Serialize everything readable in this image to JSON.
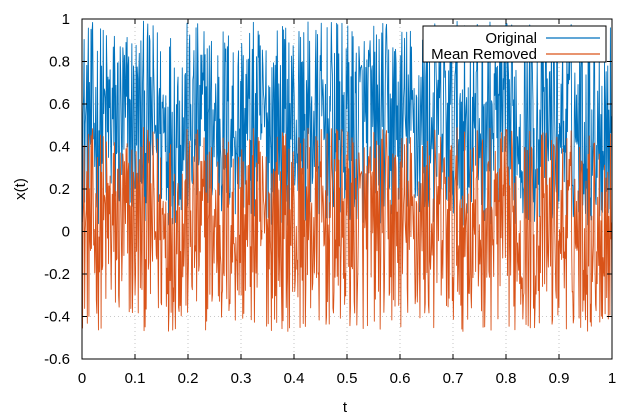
{
  "chart_data": {
    "type": "line",
    "title": "",
    "xlabel": "t",
    "ylabel": "x(t)",
    "xlim": [
      0,
      1
    ],
    "ylim": [
      -0.6,
      1
    ],
    "xticks": [
      0,
      0.1,
      0.2,
      0.3,
      0.4,
      0.5,
      0.6,
      0.7,
      0.8,
      0.9,
      1
    ],
    "xtick_labels": [
      "0",
      "0.1",
      "0.2",
      "0.3",
      "0.4",
      "0.5",
      "0.6",
      "0.7",
      "0.8",
      "0.9",
      "1"
    ],
    "yticks": [
      -0.6,
      -0.4,
      -0.2,
      0,
      0.2,
      0.4,
      0.6,
      0.8,
      1
    ],
    "ytick_labels": [
      "-0.6",
      "-0.4",
      "-0.2",
      "0",
      "0.2",
      "0.4",
      "0.6",
      "0.8",
      "1"
    ],
    "grid": true,
    "legend_position": "top-right",
    "series": [
      {
        "name": "Original",
        "color": "#0072BD",
        "x_range": [
          0,
          1
        ],
        "n_points": 1000,
        "value_range": [
          0.03,
          0.99
        ],
        "mean": 0.5
      },
      {
        "name": "Mean Removed",
        "color": "#D95319",
        "x_range": [
          0,
          1
        ],
        "n_points": 1000,
        "value_range": [
          -0.47,
          0.49
        ],
        "mean": 0
      }
    ]
  }
}
